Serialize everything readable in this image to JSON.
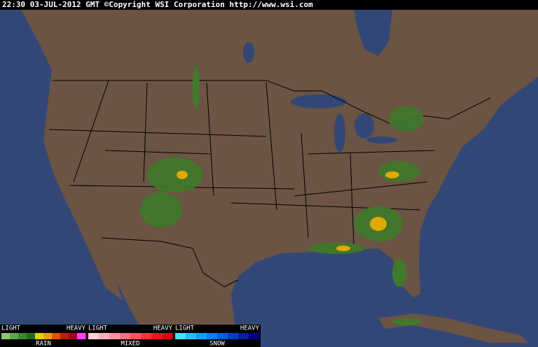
{
  "header": {
    "text": "22:30 03-JUL-2012 GMT ©Copyright WSI Corporation  http://www.wsi.com"
  },
  "legend": [
    {
      "light": "LIGHT",
      "heavy": "HEAVY",
      "name": "RAIN"
    },
    {
      "light": "LIGHT",
      "heavy": "HEAVY",
      "name": "MIXED"
    },
    {
      "light": "LIGHT",
      "heavy": "HEAVY",
      "name": "SNOW"
    }
  ]
}
